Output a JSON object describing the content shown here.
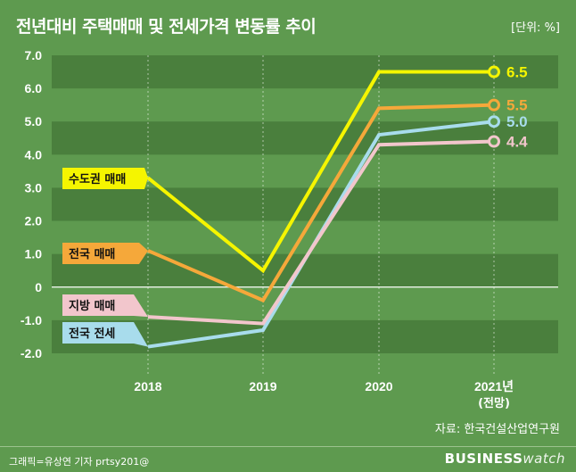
{
  "title": "전년대비 주택매매 및 전세가격 변동률 추이",
  "unit": "[단위: %]",
  "source": "자료: 한국건설산업연구원",
  "credit": "그래픽=유상연 기자 prtsy201@",
  "logo": {
    "main": "BUSINESS",
    "sub": "watch"
  },
  "chart_data": {
    "type": "line",
    "x": [
      "2018",
      "2019",
      "2020",
      "2021년"
    ],
    "x_sub": [
      "",
      "",
      "",
      "(전망)"
    ],
    "ylim": [
      -2.0,
      7.0
    ],
    "yticks": [
      "7.0",
      "6.0",
      "5.0",
      "4.0",
      "3.0",
      "2.0",
      "1.0",
      "0",
      "-1.0",
      "-2.0"
    ],
    "ytick_values": [
      7,
      6,
      5,
      4,
      3,
      2,
      1,
      0,
      -1,
      -2
    ],
    "series": [
      {
        "name": "수도권 매매",
        "values": [
          3.3,
          0.5,
          6.5,
          6.5
        ],
        "end_label": "6.5",
        "color": "#f5f500",
        "label_color": "#f5f500"
      },
      {
        "name": "전국 매매",
        "values": [
          1.1,
          -0.4,
          5.4,
          5.5
        ],
        "end_label": "5.5",
        "color": "#f5a83a",
        "label_color": "#f5a83a"
      },
      {
        "name": "지방 매매",
        "values": [
          -0.9,
          -1.1,
          4.3,
          4.4
        ],
        "end_label": "4.4",
        "color": "#f2c6cc",
        "label_color": "#f2c6cc"
      },
      {
        "name": "전국 전세",
        "values": [
          -1.8,
          -1.3,
          4.6,
          5.0
        ],
        "end_label": "5.0",
        "color": "#a8dcec",
        "label_color": "#a8dcec"
      }
    ]
  }
}
